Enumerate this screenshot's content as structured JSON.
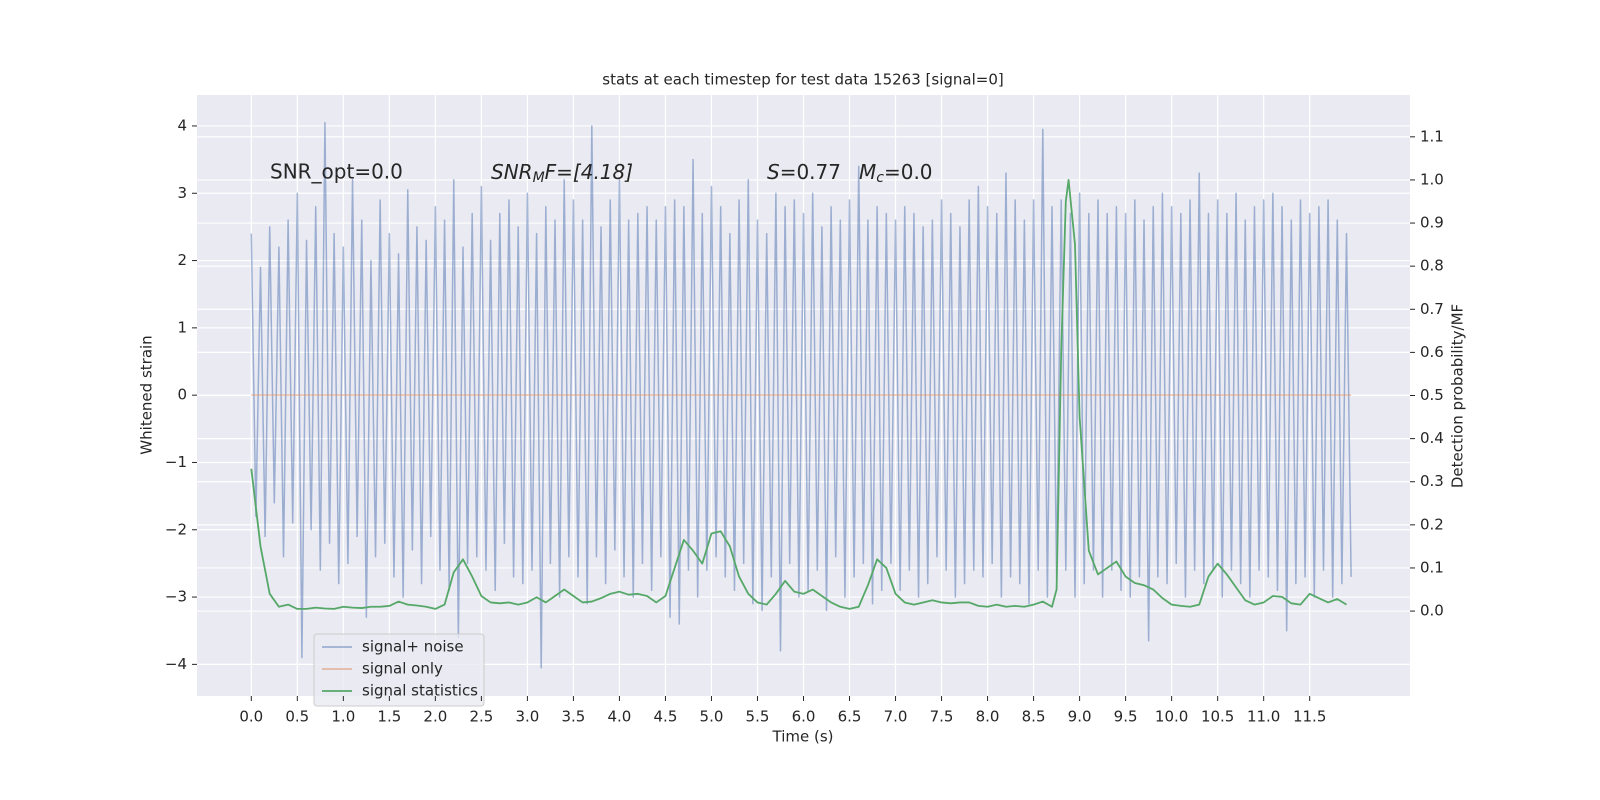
{
  "chart_data": {
    "type": "line",
    "title": "stats at each timestep for test data 15263 [signal=0]",
    "xlabel": "Time (s)",
    "ylabel": "Whitened strain",
    "y2label": "Detection probability/MF",
    "xlim": [
      -0.59,
      12.59
    ],
    "ylim": [
      -4.47,
      4.46
    ],
    "y2lim": [
      -0.197,
      1.197
    ],
    "xticks": [
      {
        "value": 0,
        "label": "0.0"
      },
      0.5,
      {
        "value": 1,
        "label": "1.0"
      },
      1.5,
      {
        "value": 2,
        "label": "2.0"
      },
      2.5,
      {
        "value": 3,
        "label": "3.0"
      },
      3.5,
      {
        "value": 4,
        "label": "4.0"
      },
      4.5,
      {
        "value": 5,
        "label": "5.0"
      },
      5.5,
      {
        "value": 6,
        "label": "6.0"
      },
      6.5,
      {
        "value": 7,
        "label": "7.0"
      },
      7.5,
      {
        "value": 8,
        "label": "8.0"
      },
      8.5,
      {
        "value": 9,
        "label": "9.0"
      },
      9.5,
      {
        "value": 10,
        "label": "10.0"
      },
      10.5,
      {
        "value": 11,
        "label": "11.0"
      },
      11.5
    ],
    "yticks": [
      {
        "value": -4,
        "label": "−4"
      },
      {
        "value": -3,
        "label": "−3"
      },
      {
        "value": -2,
        "label": "−2"
      },
      {
        "value": -1,
        "label": "−1"
      },
      0,
      1,
      2,
      3,
      4
    ],
    "y2ticks": [
      {
        "value": 0,
        "label": "0.0"
      },
      0.1,
      0.2,
      0.3,
      0.4,
      0.5,
      0.6,
      0.7,
      0.8,
      0.9,
      {
        "value": 1,
        "label": "1.0"
      },
      1.1
    ],
    "grid": true,
    "legend": "lower left",
    "annotations": [
      {
        "text": "SNR_opt=0.0"
      },
      {
        "main": "SNR",
        "sub": "M",
        "rest": "F=[4.18]"
      },
      {
        "main": "S",
        "rest": "=0.77"
      },
      {
        "main": "M",
        "sub": "c",
        "rest": "=0.0"
      }
    ],
    "series": [
      {
        "name": "signal+ noise",
        "color": "#4c72b0",
        "x": [
          0,
          0.05,
          0.1,
          0.15,
          0.2,
          0.25,
          0.3,
          0.35,
          0.4,
          0.45,
          0.5,
          0.55,
          0.6,
          0.65,
          0.7,
          0.75,
          0.8,
          0.85,
          0.9,
          0.95,
          1,
          1.05,
          1.1,
          1.15,
          1.2,
          1.25,
          1.3,
          1.35,
          1.4,
          1.45,
          1.5,
          1.55,
          1.6,
          1.65,
          1.7,
          1.75,
          1.8,
          1.85,
          1.9,
          1.95,
          2,
          2.05,
          2.1,
          2.15,
          2.2,
          2.25,
          2.3,
          2.35,
          2.4,
          2.45,
          2.5,
          2.55,
          2.6,
          2.65,
          2.7,
          2.75,
          2.8,
          2.85,
          2.9,
          2.95,
          3,
          3.05,
          3.1,
          3.15,
          3.2,
          3.25,
          3.3,
          3.35,
          3.4,
          3.45,
          3.5,
          3.55,
          3.6,
          3.65,
          3.7,
          3.75,
          3.8,
          3.85,
          3.9,
          3.95,
          4,
          4.05,
          4.1,
          4.15,
          4.2,
          4.25,
          4.3,
          4.35,
          4.4,
          4.45,
          4.5,
          4.55,
          4.6,
          4.65,
          4.7,
          4.75,
          4.8,
          4.85,
          4.9,
          4.95,
          5,
          5.05,
          5.1,
          5.15,
          5.2,
          5.25,
          5.3,
          5.35,
          5.4,
          5.45,
          5.5,
          5.55,
          5.6,
          5.65,
          5.7,
          5.75,
          5.8,
          5.85,
          5.9,
          5.95,
          6,
          6.05,
          6.1,
          6.15,
          6.2,
          6.25,
          6.3,
          6.35,
          6.4,
          6.45,
          6.5,
          6.55,
          6.6,
          6.65,
          6.7,
          6.75,
          6.8,
          6.85,
          6.9,
          6.95,
          7,
          7.05,
          7.1,
          7.15,
          7.2,
          7.25,
          7.3,
          7.35,
          7.4,
          7.45,
          7.5,
          7.55,
          7.6,
          7.65,
          7.7,
          7.75,
          7.8,
          7.85,
          7.9,
          7.95,
          8,
          8.05,
          8.1,
          8.15,
          8.2,
          8.25,
          8.3,
          8.35,
          8.4,
          8.45,
          8.5,
          8.55,
          8.6,
          8.65,
          8.7,
          8.75,
          8.8,
          8.85,
          8.9,
          8.95,
          9,
          9.05,
          9.1,
          9.15,
          9.2,
          9.25,
          9.3,
          9.35,
          9.4,
          9.45,
          9.5,
          9.55,
          9.6,
          9.65,
          9.7,
          9.75,
          9.8,
          9.85,
          9.9,
          9.95,
          10,
          10.05,
          10.1,
          10.15,
          10.2,
          10.25,
          10.3,
          10.35,
          10.4,
          10.45,
          10.5,
          10.55,
          10.6,
          10.65,
          10.7,
          10.75,
          10.8,
          10.85,
          10.9,
          10.95,
          11,
          11.05,
          11.1,
          11.15,
          11.2,
          11.25,
          11.3,
          11.35,
          11.4,
          11.45,
          11.5,
          11.55,
          11.6,
          11.65,
          11.7,
          11.75,
          11.8,
          11.85,
          11.9,
          11.95
        ],
        "values": [
          2.4,
          -1.8,
          1.9,
          -2.1,
          2.5,
          -1.6,
          2.2,
          -2.4,
          2.6,
          -1.9,
          3.0,
          -3.9,
          2.3,
          -2.0,
          2.8,
          -2.6,
          4.05,
          -2.2,
          2.4,
          -2.8,
          2.2,
          -2.5,
          3.2,
          -2.1,
          2.6,
          -3.3,
          2.0,
          -2.4,
          2.9,
          -2.2,
          2.4,
          -2.7,
          2.1,
          -3.0,
          3.05,
          -2.3,
          2.5,
          -2.8,
          2.3,
          -2.1,
          2.8,
          -2.6,
          2.6,
          -2.9,
          3.2,
          -3.6,
          2.2,
          -2.5,
          2.7,
          -2.4,
          3.1,
          -2.6,
          2.3,
          -2.9,
          2.7,
          -2.2,
          2.9,
          -2.7,
          2.5,
          -2.8,
          3.0,
          -2.6,
          2.4,
          -4.05,
          2.8,
          -2.5,
          2.6,
          -3.0,
          3.2,
          -2.4,
          2.9,
          -2.7,
          2.6,
          -3.1,
          4.0,
          -2.4,
          2.5,
          -2.8,
          2.9,
          -2.3,
          3.2,
          -2.7,
          2.6,
          -3.0,
          2.7,
          -2.5,
          2.8,
          -2.9,
          2.6,
          -2.4,
          2.8,
          -3.3,
          2.9,
          -3.4,
          2.8,
          -2.6,
          3.5,
          -3.0,
          2.7,
          -2.6,
          3.1,
          -2.4,
          2.8,
          -2.7,
          2.4,
          -2.9,
          2.9,
          -2.5,
          3.2,
          -3.1,
          2.6,
          -3.2,
          2.4,
          -2.7,
          3.0,
          -3.8,
          2.8,
          -2.5,
          2.9,
          -3.0,
          2.7,
          -2.9,
          3.0,
          -2.6,
          2.5,
          -3.2,
          2.8,
          -2.4,
          2.6,
          -3.0,
          2.9,
          -2.7,
          3.4,
          -2.5,
          2.6,
          -3.1,
          2.8,
          -2.9,
          2.7,
          -2.5,
          2.6,
          -2.9,
          2.8,
          -2.6,
          2.7,
          -3.0,
          2.5,
          -2.8,
          2.6,
          -2.4,
          2.9,
          -2.6,
          2.7,
          -3.0,
          2.5,
          -2.8,
          2.9,
          -2.6,
          3.1,
          -2.7,
          2.8,
          -2.5,
          2.7,
          -3.0,
          3.3,
          -2.7,
          2.9,
          -2.8,
          2.6,
          -3.1,
          2.9,
          -2.6,
          3.95,
          -3.0,
          2.8,
          -2.7,
          2.9,
          -2.6,
          2.7,
          -3.0,
          3.0,
          -2.8,
          2.7,
          -2.6,
          2.9,
          -3.0,
          2.7,
          -2.6,
          2.8,
          -2.9,
          2.7,
          -3.0,
          2.9,
          -2.7,
          2.6,
          -3.65,
          2.8,
          -2.7,
          3.0,
          -2.8,
          2.8,
          -2.5,
          2.7,
          -3.0,
          2.9,
          -2.6,
          3.3,
          -2.8,
          2.7,
          -2.6,
          2.9,
          -3.0,
          2.7,
          -2.6,
          3.0,
          -2.8,
          2.6,
          -3.0,
          2.8,
          -2.6,
          2.9,
          -2.7,
          3.0,
          -2.9,
          2.8,
          -3.5,
          2.6,
          -2.8,
          2.9,
          -2.7,
          2.7,
          -3.0,
          2.8,
          -2.6,
          2.9,
          -3.0,
          2.6,
          -2.8,
          2.4,
          -2.7
        ]
      },
      {
        "name": "signal only",
        "color": "#dd8452",
        "x": [
          0,
          11.95
        ],
        "values": [
          0,
          0
        ]
      },
      {
        "name": "signal statistics",
        "color": "#55a868",
        "axis": "y2",
        "x": [
          0,
          0.1,
          0.2,
          0.3,
          0.4,
          0.5,
          0.6,
          0.7,
          0.8,
          0.9,
          1,
          1.1,
          1.2,
          1.3,
          1.4,
          1.5,
          1.6,
          1.7,
          1.8,
          1.9,
          2,
          2.1,
          2.2,
          2.3,
          2.4,
          2.5,
          2.6,
          2.7,
          2.8,
          2.9,
          3,
          3.1,
          3.2,
          3.3,
          3.4,
          3.5,
          3.6,
          3.7,
          3.8,
          3.9,
          4,
          4.1,
          4.2,
          4.3,
          4.4,
          4.5,
          4.6,
          4.7,
          4.8,
          4.9,
          5,
          5.1,
          5.2,
          5.3,
          5.4,
          5.5,
          5.6,
          5.7,
          5.8,
          5.9,
          6,
          6.1,
          6.2,
          6.3,
          6.4,
          6.5,
          6.6,
          6.7,
          6.8,
          6.9,
          7,
          7.1,
          7.2,
          7.3,
          7.4,
          7.5,
          7.6,
          7.7,
          7.8,
          7.9,
          8,
          8.1,
          8.2,
          8.3,
          8.4,
          8.5,
          8.6,
          8.7,
          8.75,
          8.8,
          8.85,
          8.88,
          8.95,
          9,
          9.1,
          9.2,
          9.3,
          9.4,
          9.5,
          9.6,
          9.7,
          9.8,
          9.9,
          10,
          10.1,
          10.2,
          10.3,
          10.4,
          10.5,
          10.6,
          10.7,
          10.8,
          10.9,
          11,
          11.1,
          11.2,
          11.3,
          11.4,
          11.5,
          11.6,
          11.7,
          11.8,
          11.9
        ],
        "values": [
          0.33,
          0.15,
          0.04,
          0.01,
          0.015,
          0.005,
          0.005,
          0.008,
          0.006,
          0.005,
          0.01,
          0.008,
          0.007,
          0.01,
          0.01,
          0.012,
          0.022,
          0.015,
          0.013,
          0.01,
          0.005,
          0.015,
          0.09,
          0.12,
          0.08,
          0.035,
          0.02,
          0.018,
          0.02,
          0.015,
          0.02,
          0.032,
          0.02,
          0.035,
          0.05,
          0.035,
          0.02,
          0.022,
          0.03,
          0.04,
          0.045,
          0.038,
          0.04,
          0.035,
          0.02,
          0.035,
          0.1,
          0.165,
          0.14,
          0.11,
          0.18,
          0.185,
          0.15,
          0.08,
          0.04,
          0.02,
          0.015,
          0.04,
          0.07,
          0.045,
          0.04,
          0.05,
          0.035,
          0.02,
          0.01,
          0.005,
          0.01,
          0.06,
          0.12,
          0.1,
          0.04,
          0.02,
          0.015,
          0.02,
          0.025,
          0.02,
          0.018,
          0.02,
          0.02,
          0.012,
          0.01,
          0.015,
          0.01,
          0.012,
          0.01,
          0.015,
          0.022,
          0.01,
          0.05,
          0.6,
          0.95,
          1.0,
          0.85,
          0.45,
          0.14,
          0.085,
          0.1,
          0.115,
          0.08,
          0.065,
          0.06,
          0.05,
          0.03,
          0.015,
          0.012,
          0.01,
          0.015,
          0.08,
          0.11,
          0.085,
          0.055,
          0.025,
          0.015,
          0.02,
          0.035,
          0.033,
          0.018,
          0.015,
          0.04,
          0.03,
          0.02,
          0.028,
          0.015
        ]
      }
    ]
  }
}
